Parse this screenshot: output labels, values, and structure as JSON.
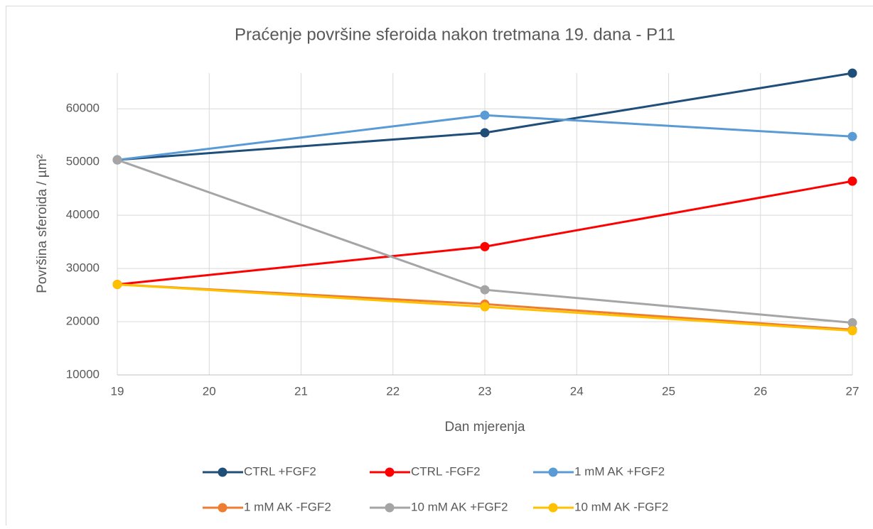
{
  "chart_data": {
    "type": "line",
    "title": "Praćenje površine sferoida nakon tretmana 19. dana - P11",
    "x_label": "Dan mjerenja",
    "y_label": "Površina sferoida / µm²",
    "x": [
      19,
      23,
      27
    ],
    "series": [
      {
        "name": "CTRL +FGF2",
        "color": "#1f4e79",
        "values": [
          50400,
          55500,
          66700
        ]
      },
      {
        "name": "CTRL -FGF2",
        "color": "#ff0000",
        "values": [
          27000,
          34100,
          46400
        ]
      },
      {
        "name": "1 mM AK +FGF2",
        "color": "#5b9bd5",
        "values": [
          50400,
          58800,
          54800
        ]
      },
      {
        "name": "1 mM AK -FGF2",
        "color": "#ed7d31",
        "values": [
          27000,
          23300,
          18500
        ]
      },
      {
        "name": "10 mM AK +FGF2",
        "color": "#a5a5a5",
        "values": [
          50400,
          26000,
          19800
        ]
      },
      {
        "name": "10 mM AK -FGF2",
        "color": "#ffc000",
        "values": [
          27000,
          22800,
          18300
        ]
      }
    ],
    "xlim": [
      19,
      27
    ],
    "xticks": [
      19,
      20,
      21,
      22,
      23,
      24,
      25,
      26,
      27
    ],
    "ylim": [
      10000,
      66700
    ],
    "yticks": [
      10000,
      20000,
      30000,
      40000,
      50000,
      60000
    ],
    "grid": true,
    "legend": "bottom"
  }
}
